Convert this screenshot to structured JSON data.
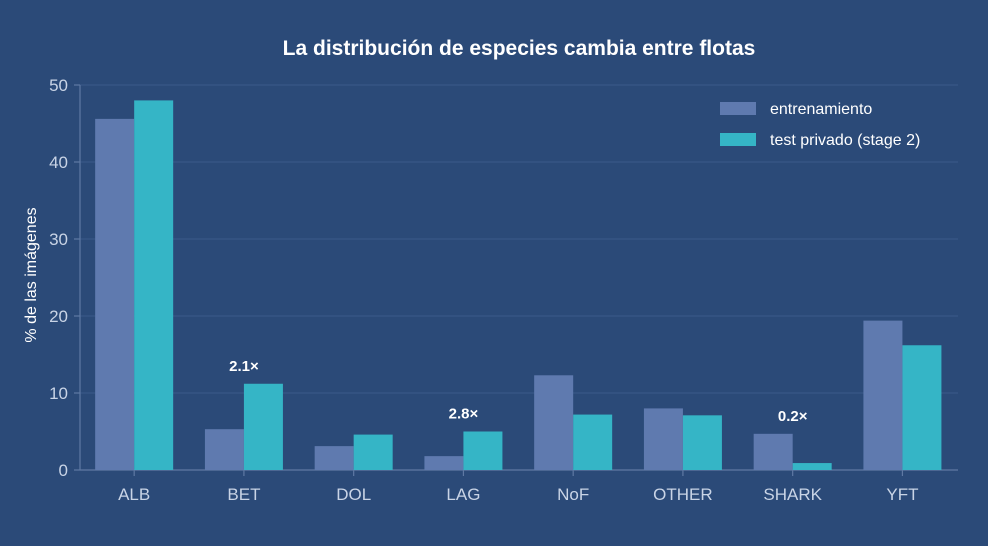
{
  "chart_data": {
    "type": "bar",
    "title": "La distribución de especies cambia entre flotas",
    "xlabel": "",
    "ylabel": "% de las imágenes",
    "ylim": [
      0,
      50
    ],
    "yticks": [
      0,
      10,
      20,
      30,
      40,
      50
    ],
    "categories": [
      "ALB",
      "BET",
      "DOL",
      "LAG",
      "NoF",
      "OTHER",
      "SHARK",
      "YFT"
    ],
    "series": [
      {
        "name": "entrenamiento",
        "color": "#5f7aaf",
        "values": [
          45.6,
          5.3,
          3.1,
          1.8,
          12.3,
          8.0,
          4.7,
          19.4
        ]
      },
      {
        "name": "test privado (stage 2)",
        "color": "#35b5c6",
        "values": [
          48.0,
          11.2,
          4.6,
          5.0,
          7.2,
          7.1,
          0.9,
          16.2
        ]
      }
    ],
    "annotations": [
      {
        "category": "BET",
        "text": "2.1×"
      },
      {
        "category": "LAG",
        "text": "2.8×"
      },
      {
        "category": "SHARK",
        "text": "0.2×"
      }
    ],
    "grid": true,
    "legend": "top-right"
  }
}
